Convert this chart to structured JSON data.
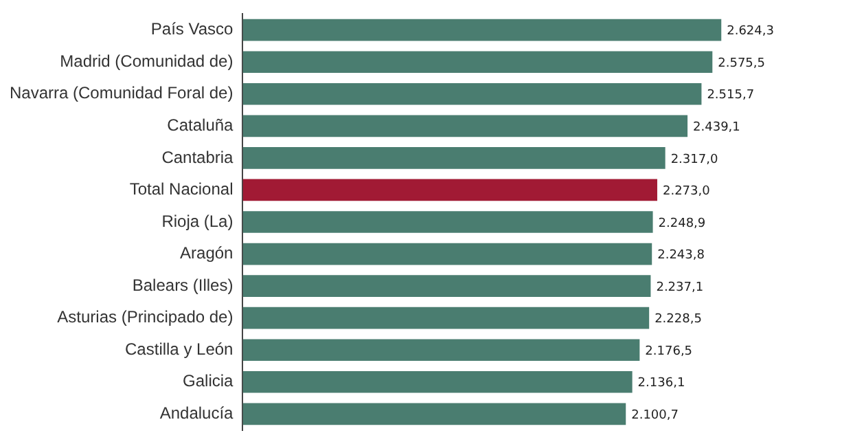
{
  "chart_data": {
    "type": "bar",
    "orientation": "horizontal",
    "categories": [
      "País Vasco",
      "Madrid (Comunidad de)",
      "Navarra (Comunidad Foral de)",
      "Cataluña",
      "Cantabria",
      "Total Nacional",
      "Rioja (La)",
      "Aragón",
      "Balears (Illes)",
      "Asturias (Principado de)",
      "Castilla y León",
      "Galicia",
      "Andalucía"
    ],
    "values": [
      2624.3,
      2575.5,
      2515.7,
      2439.1,
      2317.0,
      2273.0,
      2248.9,
      2243.8,
      2237.1,
      2228.5,
      2176.5,
      2136.1,
      2100.7
    ],
    "value_labels": [
      "2.624,3",
      "2.575,5",
      "2.515,7",
      "2.439,1",
      "2.317,0",
      "2.273,0",
      "2.248,9",
      "2.243,8",
      "2.237,1",
      "2.228,5",
      "2.176,5",
      "2.136,1",
      "2.100,7"
    ],
    "colors": [
      "#4a7d70",
      "#4a7d70",
      "#4a7d70",
      "#4a7d70",
      "#4a7d70",
      "#a11a34",
      "#4a7d70",
      "#4a7d70",
      "#4a7d70",
      "#4a7d70",
      "#4a7d70",
      "#4a7d70",
      "#4a7d70"
    ],
    "tick_labels": "y",
    "grid": false,
    "legend": false
  }
}
